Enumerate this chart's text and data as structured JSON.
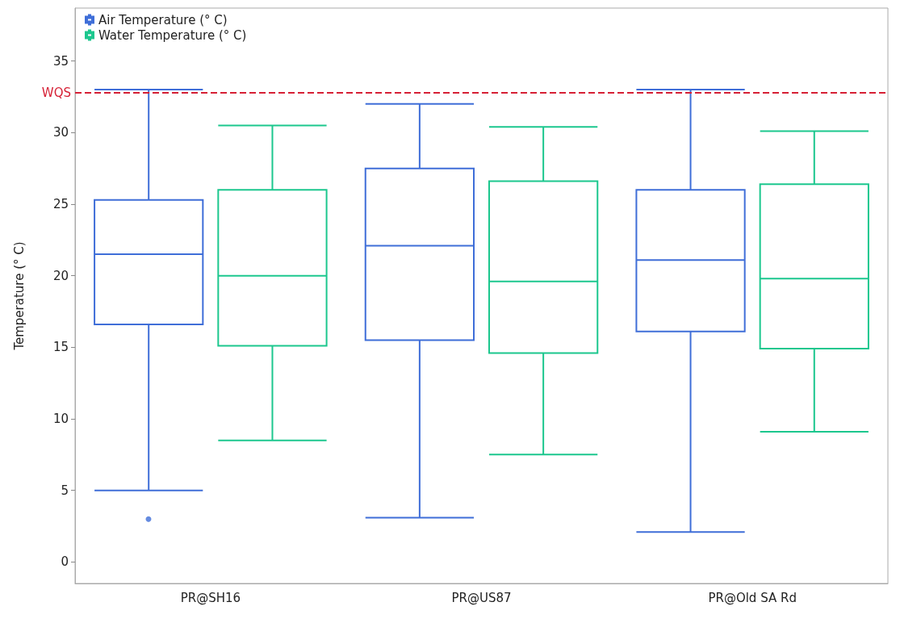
{
  "chart_data": {
    "type": "box",
    "ylabel": "Temperature (° C)",
    "categories": [
      "PR@SH16",
      "PR@US87",
      "PR@Old SA Rd"
    ],
    "series": [
      {
        "name": "Air Temperature (° C)",
        "color": "#3f6ed8",
        "boxes": [
          {
            "low": 5.0,
            "q1": 16.6,
            "median": 21.5,
            "q3": 25.3,
            "high": 33.0,
            "outliers": [
              3.0
            ]
          },
          {
            "low": 3.1,
            "q1": 15.5,
            "median": 22.1,
            "q3": 27.5,
            "high": 32.0
          },
          {
            "low": 2.1,
            "q1": 16.1,
            "median": 21.1,
            "q3": 26.0,
            "high": 33.0
          }
        ]
      },
      {
        "name": "Water Temperature (° C)",
        "color": "#1cc78e",
        "boxes": [
          {
            "low": 8.5,
            "q1": 15.1,
            "median": 20.0,
            "q3": 26.0,
            "high": 30.5
          },
          {
            "low": 7.5,
            "q1": 14.6,
            "median": 19.6,
            "q3": 26.6,
            "high": 30.4
          },
          {
            "low": 9.1,
            "q1": 14.9,
            "median": 19.8,
            "q3": 26.4,
            "high": 30.1
          }
        ]
      }
    ],
    "ylim": [
      -1.5,
      38.7
    ],
    "yticks": [
      0,
      5,
      10,
      15,
      20,
      25,
      30,
      35
    ],
    "ref_lines": [
      {
        "axis": "y",
        "value": 32.8,
        "label": "WQS",
        "color": "#d62035",
        "line_style": "dashed"
      }
    ],
    "grid": false,
    "legend": "top left"
  }
}
